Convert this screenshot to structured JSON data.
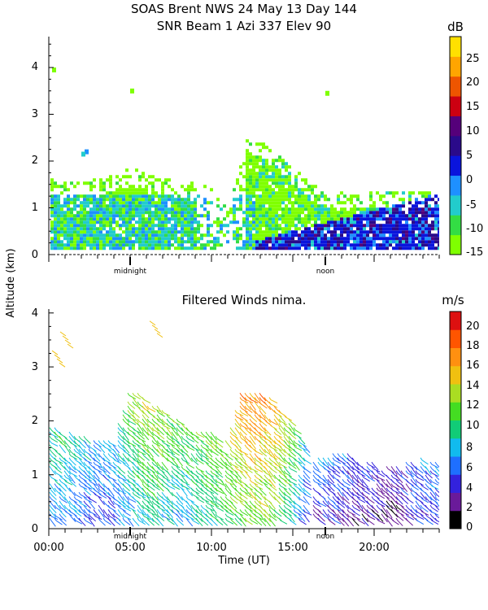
{
  "title_line1": "SOAS Brent NWS  24 May 13 Day 144",
  "title_line2": "SNR Beam 1 Azi 337 Elev 90",
  "shared_ylabel": "Altitude (km)",
  "midnight_label": "midnight",
  "noon_label": "noon",
  "chart_data": [
    {
      "type": "heatmap",
      "title": "SNR Beam 1 Azi 337 Elev 90",
      "ylabel": "Altitude (km)",
      "ylim": [
        0,
        4.6
      ],
      "xlim_hours": [
        0,
        24
      ],
      "y_ticks": [
        "0",
        "1",
        "2",
        "3",
        "4"
      ],
      "colorbar": {
        "unit": "dB",
        "range": [
          -15,
          30
        ],
        "tick_labels": [
          "-15",
          "-10",
          "-5",
          "0",
          "5",
          "10",
          "15",
          "20",
          "25"
        ],
        "colors": [
          "#7fff00",
          "#33dd44",
          "#22cccc",
          "#1e90ff",
          "#0a14dc",
          "#2a0a8a",
          "#55007a",
          "#cc0011",
          "#ee5500",
          "#ffa500",
          "#ffe000"
        ]
      },
      "signal_top_km_by_hour": [
        [
          0,
          1.6
        ],
        [
          1,
          1.5
        ],
        [
          2,
          1.5
        ],
        [
          3,
          1.6
        ],
        [
          4,
          1.7
        ],
        [
          5,
          1.8
        ],
        [
          6,
          1.7
        ],
        [
          7,
          1.6
        ],
        [
          8,
          1.5
        ],
        [
          9,
          1.5
        ],
        [
          10,
          1.4
        ],
        [
          11,
          0.9
        ],
        [
          12,
          2.5
        ],
        [
          13,
          2.4
        ],
        [
          14,
          2.1
        ],
        [
          15,
          1.8
        ],
        [
          16,
          1.5
        ],
        [
          17,
          1.3
        ],
        [
          18,
          1.3
        ],
        [
          19,
          1.3
        ],
        [
          20,
          1.3
        ],
        [
          21,
          1.3
        ],
        [
          22,
          1.3
        ],
        [
          23,
          1.3
        ],
        [
          24,
          1.3
        ]
      ],
      "high_snr_region": "Strong 0 to 15 dB echoes below about 1.2 km from 14:00 to 24:00"
    },
    {
      "type": "scatter",
      "title": "Filtered Winds nima.",
      "xlabel": "Time (UT)",
      "ylabel": "Altitude (km)",
      "xlim_hours": [
        0,
        24
      ],
      "ylim": [
        0,
        4.2
      ],
      "x_ticks": [
        "00:00",
        "05:00",
        "10:00",
        "15:00",
        "20:00"
      ],
      "y_ticks": [
        "0",
        "1",
        "2",
        "3",
        "4"
      ],
      "colorbar": {
        "unit": "m/s",
        "range": [
          0,
          22
        ],
        "tick_labels": [
          "0",
          "2",
          "4",
          "6",
          "8",
          "10",
          "12",
          "14",
          "16",
          "18",
          "20"
        ],
        "colors": [
          "#000000",
          "#6a1a9a",
          "#3322dd",
          "#1e6fff",
          "#11bbee",
          "#11cc77",
          "#44dd22",
          "#aadd22",
          "#f0c010",
          "#ff9010",
          "#ff5500",
          "#dd1010"
        ]
      },
      "wind_top_km_by_hour": [
        [
          0,
          1.9
        ],
        [
          1,
          1.8
        ],
        [
          2,
          1.7
        ],
        [
          3,
          1.6
        ],
        [
          4,
          1.6
        ],
        [
          5,
          2.6
        ],
        [
          6,
          2.4
        ],
        [
          7,
          2.2
        ],
        [
          8,
          2.0
        ],
        [
          9,
          1.8
        ],
        [
          10,
          1.8
        ],
        [
          11,
          1.6
        ],
        [
          12,
          2.7
        ],
        [
          13,
          2.6
        ],
        [
          14,
          2.3
        ],
        [
          15,
          2.0
        ],
        [
          16,
          1.4
        ],
        [
          17,
          1.3
        ],
        [
          18,
          1.4
        ],
        [
          19,
          1.3
        ],
        [
          20,
          1.2
        ],
        [
          21,
          1.1
        ],
        [
          22,
          1.2
        ],
        [
          23,
          1.3
        ],
        [
          24,
          1.2
        ]
      ],
      "speed_ms_by_hour": [
        [
          0,
          8
        ],
        [
          1,
          8
        ],
        [
          2,
          7
        ],
        [
          3,
          6
        ],
        [
          4,
          7
        ],
        [
          5,
          9
        ],
        [
          6,
          11
        ],
        [
          7,
          10
        ],
        [
          8,
          9
        ],
        [
          9,
          10
        ],
        [
          10,
          11
        ],
        [
          11,
          12
        ],
        [
          12,
          14
        ],
        [
          13,
          14
        ],
        [
          14,
          13
        ],
        [
          15,
          10
        ],
        [
          16,
          5
        ],
        [
          17,
          6
        ],
        [
          18,
          5
        ],
        [
          19,
          4
        ],
        [
          20,
          4
        ],
        [
          21,
          3
        ],
        [
          22,
          5
        ],
        [
          23,
          6
        ],
        [
          24,
          6
        ]
      ],
      "isolated_high_winds": [
        {
          "hour": 0.2,
          "alt_km": 3.3,
          "speed_ms": 15
        },
        {
          "hour": 0.7,
          "alt_km": 3.65,
          "speed_ms": 16
        },
        {
          "hour": 6.2,
          "alt_km": 3.85,
          "speed_ms": 15
        }
      ]
    }
  ]
}
